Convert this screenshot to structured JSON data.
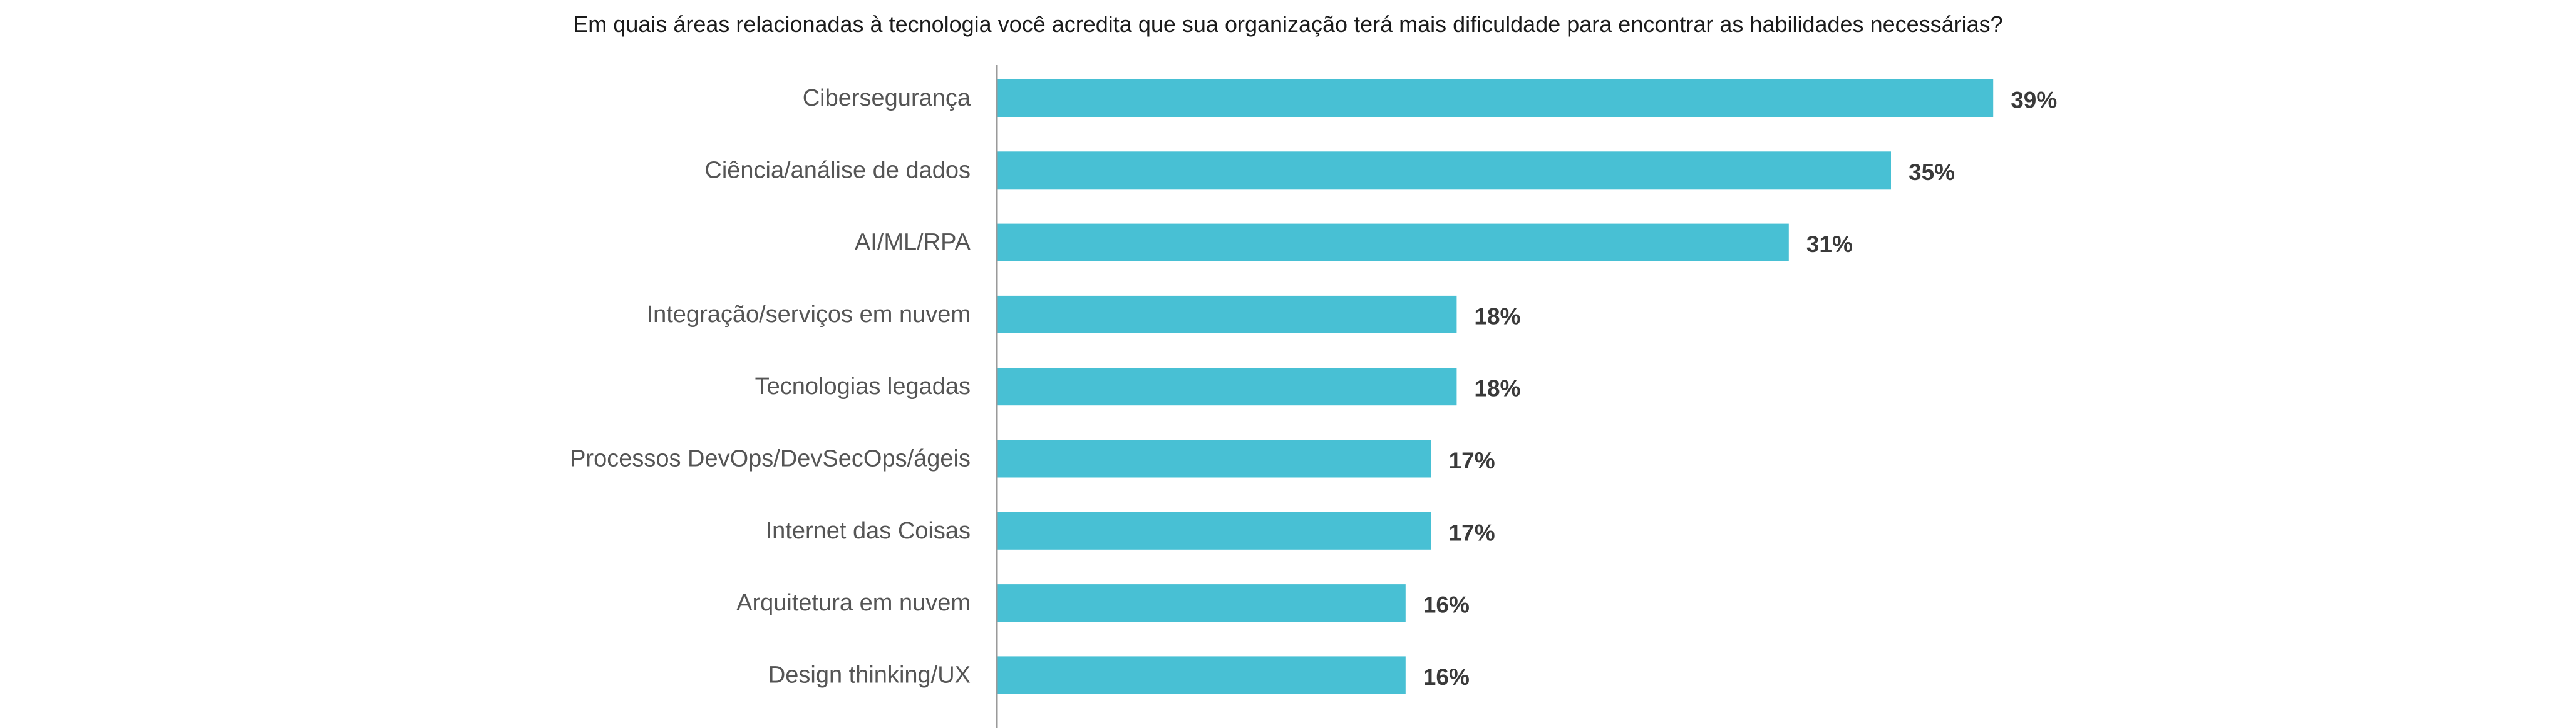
{
  "chart_data": {
    "type": "bar",
    "orientation": "horizontal",
    "title": "Em quais áreas relacionadas à tecnologia você acredita que sua organização terá mais dificuldade para encontrar as habilidades necessárias?",
    "categories": [
      "Cibersegurança",
      "Ciência/análise de dados",
      "AI/ML/RPA",
      "Integração/serviços em nuvem",
      "Tecnologias legadas",
      "Processos DevOps/DevSecOps/ágeis",
      "Internet das Coisas",
      "Arquitetura em nuvem",
      "Design thinking/UX"
    ],
    "values": [
      39,
      35,
      31,
      18,
      18,
      17,
      17,
      16,
      16
    ],
    "value_labels": [
      "39%",
      "35%",
      "31%",
      "18%",
      "18%",
      "17%",
      "17%",
      "16%",
      "16%"
    ],
    "xlabel": "",
    "ylabel": "",
    "grid": false,
    "legend": "none",
    "bar_color": "#48c0d4",
    "axis_color": "#9a9a9a"
  }
}
